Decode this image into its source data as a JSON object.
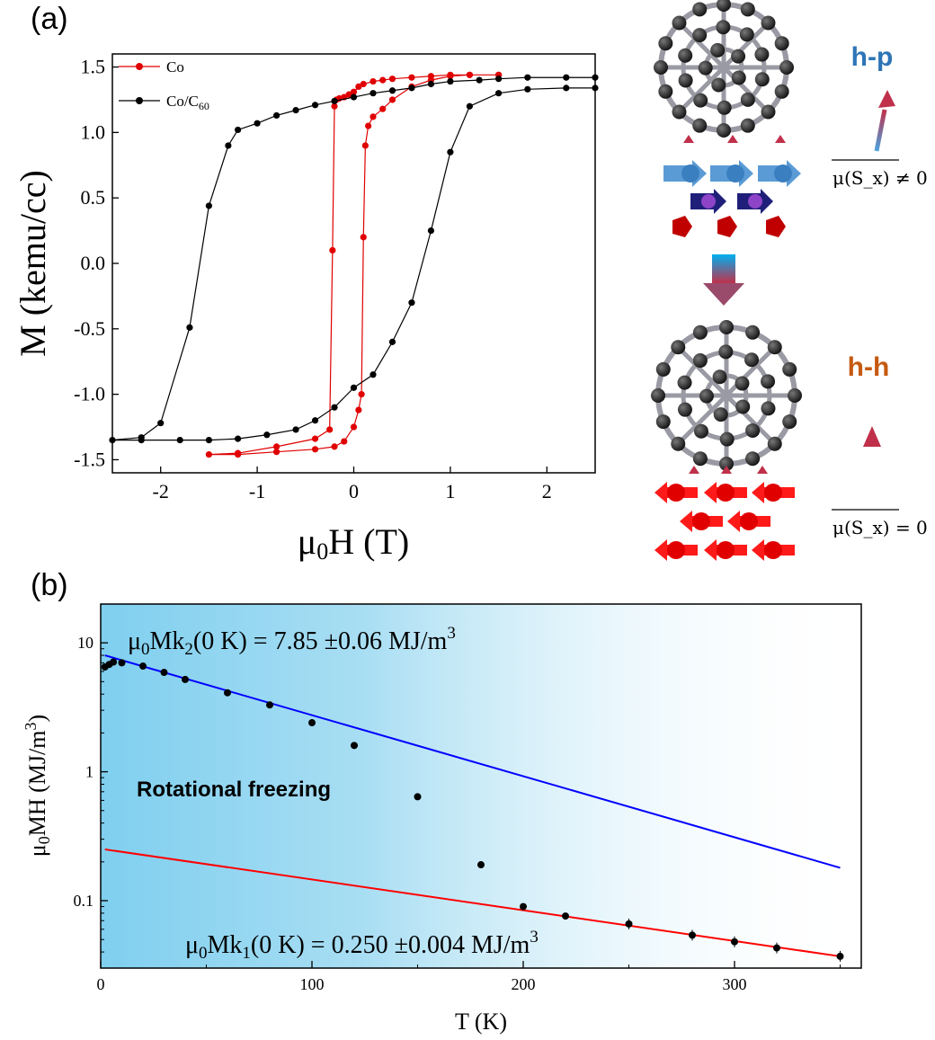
{
  "panel_labels": {
    "a": "(a)",
    "b": "(b)"
  },
  "schematic": {
    "top_label": "h-p",
    "bottom_label": "h-h",
    "top_moment": "μ(S_x) ≠ 0",
    "bottom_moment": "μ(S_x) = 0",
    "colors": {
      "hp": "#2e75b6",
      "hh": "#c55a11",
      "blue_spin": "#5b9bd5",
      "purple_spin": "#7030a0",
      "red_spin": "#e00000",
      "arrow": "#c0304a"
    }
  },
  "chart_data": [
    {
      "type": "line",
      "panel": "a",
      "xlabel_main": "μ",
      "xlabel_sub": "0",
      "xlabel_rest": "H (T)",
      "ylabel": "M (kemu/cc)",
      "xlim": [
        -2.5,
        2.5
      ],
      "ylim": [
        -1.6,
        1.6
      ],
      "xticks": [
        -2,
        -1,
        0,
        1,
        2
      ],
      "yticks": [
        -1.5,
        -1.0,
        -0.5,
        0.0,
        0.5,
        1.0,
        1.5
      ],
      "ytick_labels": [
        "-1.5",
        "-1.0",
        "-0.5",
        "0.0",
        "0.5",
        "1.0",
        "1.5"
      ],
      "legend_position": "top-left",
      "series": [
        {
          "name": "Co",
          "name_main": "Co",
          "color": "#e00000",
          "x": [
            1.5,
            1.2,
            1.0,
            0.8,
            0.6,
            0.4,
            0.3,
            0.2,
            0.1,
            0.05,
            0.0,
            -0.05,
            -0.1,
            -0.15,
            -0.18,
            -0.2,
            -0.22,
            -0.25,
            -0.4,
            -0.8,
            -1.2,
            -1.5,
            -1.2,
            -0.8,
            -0.4,
            -0.2,
            -0.1,
            0.0,
            0.05,
            0.08,
            0.1,
            0.12,
            0.15,
            0.2,
            0.3,
            0.4,
            0.6,
            0.8,
            1.0,
            1.2,
            1.5
          ],
          "y": [
            1.44,
            1.44,
            1.44,
            1.43,
            1.42,
            1.41,
            1.4,
            1.39,
            1.37,
            1.35,
            1.31,
            1.29,
            1.27,
            1.26,
            1.25,
            1.2,
            0.1,
            -1.27,
            -1.34,
            -1.4,
            -1.45,
            -1.46,
            -1.46,
            -1.44,
            -1.42,
            -1.4,
            -1.36,
            -1.25,
            -1.12,
            -1.0,
            0.2,
            0.9,
            1.05,
            1.12,
            1.18,
            1.25,
            1.35,
            1.4,
            1.43,
            1.44,
            1.44
          ]
        },
        {
          "name": "Co/C60",
          "name_main": "Co/C",
          "name_sub": "60",
          "color": "#000000",
          "x": [
            2.5,
            2.2,
            1.8,
            1.5,
            1.3,
            1.0,
            0.8,
            0.6,
            0.4,
            0.2,
            0.0,
            -0.2,
            -0.4,
            -0.6,
            -0.8,
            -1.0,
            -1.2,
            -1.3,
            -1.5,
            -1.7,
            -2.0,
            -2.2,
            -2.5,
            -2.2,
            -1.8,
            -1.5,
            -1.2,
            -0.9,
            -0.6,
            -0.4,
            -0.2,
            0.0,
            0.2,
            0.4,
            0.6,
            0.8,
            1.0,
            1.2,
            1.5,
            1.8,
            2.2,
            2.5
          ],
          "y": [
            1.42,
            1.42,
            1.42,
            1.41,
            1.4,
            1.39,
            1.37,
            1.34,
            1.32,
            1.3,
            1.27,
            1.24,
            1.21,
            1.17,
            1.13,
            1.07,
            1.02,
            0.9,
            0.44,
            -0.49,
            -1.22,
            -1.33,
            -1.35,
            -1.35,
            -1.35,
            -1.35,
            -1.34,
            -1.31,
            -1.27,
            -1.2,
            -1.1,
            -0.95,
            -0.85,
            -0.6,
            -0.3,
            0.25,
            0.85,
            1.2,
            1.3,
            1.33,
            1.34,
            1.34
          ]
        }
      ]
    },
    {
      "type": "scatter",
      "panel": "b",
      "xlabel": "T (K)",
      "ylabel_main": "μ",
      "ylabel_sub": "0",
      "ylabel_rest": "MH (MJ/m",
      "ylabel_sup": "3",
      "ylabel_end": ")",
      "xlim": [
        0,
        360
      ],
      "ylim": [
        0.03,
        20
      ],
      "yscale": "log",
      "xticks": [
        0,
        100,
        200,
        300
      ],
      "yticks": [
        0.1,
        1,
        10
      ],
      "ytick_labels": [
        "0.1",
        "1",
        "10"
      ],
      "shaded_region_label": "Rotational freezing",
      "fits": [
        {
          "name": "k2",
          "color": "#0000ff",
          "x": [
            2,
            350
          ],
          "y": [
            8.0,
            0.18
          ],
          "label_main": "μ",
          "label_sub": "0",
          "label_mid": "Mk",
          "label_sub2": "2",
          "label_rest": "(0 K) = 7.85  ±0.06 MJ/m",
          "label_sup": "3"
        },
        {
          "name": "k1",
          "color": "#ff0000",
          "x": [
            2,
            350
          ],
          "y": [
            0.25,
            0.037
          ],
          "label_main": "μ",
          "label_sub": "0",
          "label_mid": "Mk",
          "label_sub2": "1",
          "label_rest": "(0 K) = 0.250  ±0.004 MJ/m",
          "label_sup": "3"
        }
      ],
      "points": {
        "x": [
          2,
          4,
          6,
          10,
          20,
          30,
          40,
          60,
          80,
          100,
          120,
          150,
          180,
          200,
          220,
          250,
          280,
          300,
          320,
          350
        ],
        "y": [
          6.5,
          6.8,
          7.1,
          7.0,
          6.6,
          5.9,
          5.2,
          4.1,
          3.3,
          2.4,
          1.6,
          0.64,
          0.19,
          0.09,
          0.076,
          0.066,
          0.054,
          0.048,
          0.043,
          0.037
        ]
      }
    }
  ]
}
